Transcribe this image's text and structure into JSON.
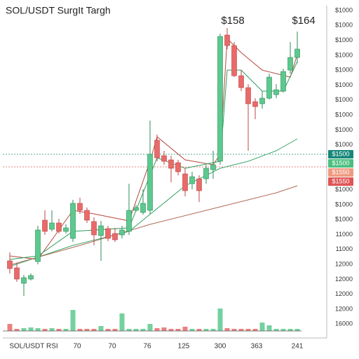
{
  "chart_data": {
    "type": "candlestick",
    "title": "SOL/USDT SurgIt Targh",
    "annotations": [
      "$158",
      "$164"
    ],
    "x_labels": [
      "SOL/USDT RSI",
      "70",
      "70",
      "76",
      "125",
      "300",
      "363",
      "241"
    ],
    "right_axis_labels": [
      "$1000",
      "$1000",
      "$1000",
      "$1000",
      "$1000",
      "$1000",
      "$1000",
      "$1000",
      "$1000",
      "$1000",
      "$1000",
      "$1000",
      "$1000",
      "11000",
      "11000",
      "12000",
      "12000",
      "12000",
      "12000",
      "16000"
    ],
    "price_tags": [
      {
        "label": "$1500",
        "color": "#17877a"
      },
      {
        "label": "$1500",
        "color": "#4cbf7f"
      },
      {
        "label": "$1550",
        "color": "#ef9a80"
      },
      {
        "label": "$1550",
        "color": "#e05555"
      }
    ],
    "ylim": [
      0,
      460
    ],
    "up_color": "#5cc98e",
    "down_color": "#e86a6a",
    "open": [
      98,
      88,
      66,
      72,
      97,
      156,
      143,
      152,
      140,
      130,
      180,
      170,
      154,
      134,
      144,
      137,
      135,
      140,
      170,
      167,
      170,
      270,
      248,
      242,
      238,
      222,
      208,
      215,
      215,
      228,
      240,
      420,
      405,
      362,
      345,
      325,
      322,
      330,
      335,
      340,
      370,
      388
    ],
    "high": [
      110,
      95,
      78,
      80,
      148,
      170,
      170,
      158,
      150,
      185,
      188,
      174,
      160,
      155,
      148,
      145,
      148,
      208,
      178,
      200,
      298,
      278,
      255,
      248,
      242,
      230,
      225,
      220,
      235,
      255,
      422,
      430,
      410,
      370,
      350,
      330,
      340,
      365,
      350,
      372,
      410,
      425
    ],
    "low": [
      80,
      68,
      48,
      70,
      93,
      135,
      140,
      137,
      137,
      125,
      165,
      152,
      120,
      98,
      126,
      125,
      130,
      135,
      168,
      164,
      165,
      240,
      235,
      210,
      220,
      190,
      200,
      182,
      208,
      215,
      235,
      400,
      360,
      340,
      255,
      300,
      315,
      328,
      330,
      338,
      365,
      380
    ],
    "close": [
      87,
      72,
      74,
      77,
      142,
      140,
      152,
      140,
      145,
      180,
      170,
      156,
      135,
      148,
      130,
      128,
      142,
      170,
      174,
      180,
      250,
      245,
      240,
      230,
      225,
      198,
      218,
      198,
      230,
      235,
      418,
      405,
      362,
      345,
      322,
      318,
      330,
      360,
      342,
      368,
      388,
      400
    ],
    "volume": [
      10,
      3,
      4,
      5,
      4,
      3,
      4,
      3,
      3,
      30,
      3,
      3,
      3,
      7,
      3,
      3,
      25,
      3,
      3,
      3,
      10,
      4,
      5,
      3,
      3,
      6,
      3,
      3,
      3,
      3,
      32,
      4,
      3,
      3,
      3,
      3,
      12,
      8,
      3,
      3,
      3,
      3
    ],
    "volume_lim": [
      0,
      40
    ],
    "moving_averages": [
      {
        "color": "#b5483c",
        "x": [
          0,
          4,
          9,
          12,
          17,
          20,
          21,
          25,
          29,
          30,
          31,
          33,
          36,
          40,
          41
        ],
        "values": [
          105,
          100,
          170,
          165,
          155,
          240,
          275,
          242,
          235,
          250,
          415,
          395,
          370,
          360,
          392
        ]
      },
      {
        "color": "#2e9b5a",
        "x": [
          0,
          4,
          9,
          17,
          21,
          25,
          30,
          31,
          33,
          36,
          39,
          41
        ],
        "values": [
          100,
          105,
          140,
          145,
          245,
          230,
          240,
          370,
          370,
          340,
          340,
          382
        ]
      },
      {
        "color": "#3aa86a",
        "x": [
          0,
          9,
          17,
          25,
          30,
          34,
          38,
          41
        ],
        "values": [
          90,
          120,
          140,
          205,
          230,
          240,
          255,
          272
        ]
      },
      {
        "color": "#b06a55",
        "x": [
          0,
          10,
          20,
          30,
          38,
          41
        ],
        "values": [
          92,
          120,
          150,
          175,
          195,
          205
        ]
      }
    ],
    "ref_lines": [
      {
        "value": 250,
        "color": "#17877a"
      },
      {
        "value": 232,
        "color": "#e05555"
      }
    ]
  }
}
